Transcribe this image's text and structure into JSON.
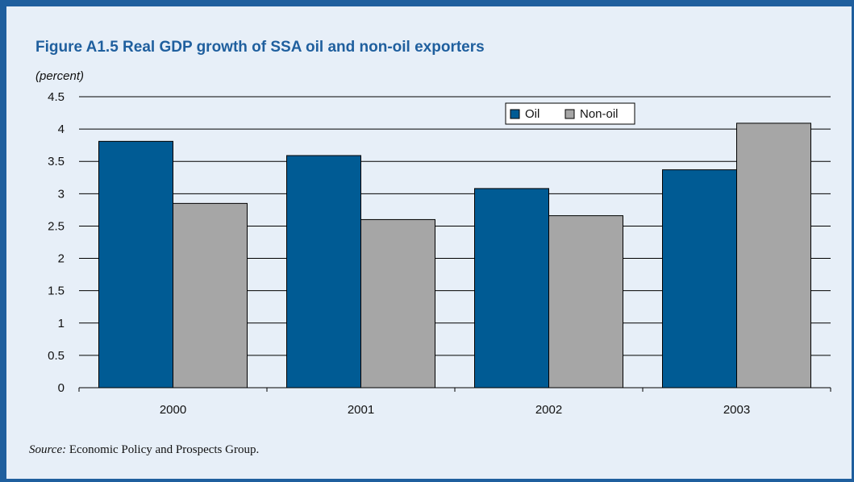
{
  "figure": {
    "title": "Figure A1.5  Real GDP growth of SSA oil and non-oil exporters",
    "units": "(percent)",
    "source_prefix": "Source:",
    "source_text": " Economic Policy and Prospects Group."
  },
  "colors": {
    "frame": "#1f5f9e",
    "background": "#e7eff8",
    "oil": "#005b94",
    "non_oil": "#a6a6a6"
  },
  "chart_data": {
    "type": "bar",
    "categories": [
      "2000",
      "2001",
      "2002",
      "2003"
    ],
    "series": [
      {
        "name": "Oil",
        "values": [
          3.81,
          3.59,
          3.08,
          3.37
        ]
      },
      {
        "name": "Non-oil",
        "values": [
          2.85,
          2.6,
          2.66,
          4.09
        ]
      }
    ],
    "ylim": [
      0,
      4.5
    ],
    "yticks": [
      "0",
      "0.5",
      "1",
      "1.5",
      "2",
      "2.5",
      "3",
      "3.5",
      "4",
      "4.5"
    ],
    "grid": true,
    "legend": "top-right"
  }
}
